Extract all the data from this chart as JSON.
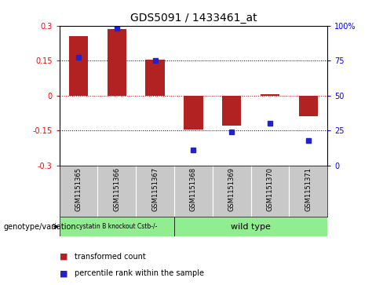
{
  "title": "GDS5091 / 1433461_at",
  "samples": [
    "GSM1151365",
    "GSM1151366",
    "GSM1151367",
    "GSM1151368",
    "GSM1151369",
    "GSM1151370",
    "GSM1151371"
  ],
  "bar_values": [
    0.255,
    0.285,
    0.155,
    -0.145,
    -0.13,
    0.005,
    -0.09
  ],
  "percentile_values": [
    0.165,
    0.29,
    0.15,
    -0.235,
    -0.155,
    -0.12,
    -0.195
  ],
  "ylim": [
    -0.3,
    0.3
  ],
  "yticks_left": [
    -0.3,
    -0.15,
    0,
    0.15,
    0.3
  ],
  "yticks_right": [
    0,
    25,
    50,
    75,
    100
  ],
  "bar_color": "#b22222",
  "dot_color": "#2222cc",
  "zero_line_color": "#cc0000",
  "dotted_line_color": "#000000",
  "group1_label": "cystatin B knockout Cstb-/-",
  "group2_label": "wild type",
  "group1_color": "#90ee90",
  "group2_color": "#90ee90",
  "group1_count": 3,
  "group2_count": 4,
  "legend_bar_label": "transformed count",
  "legend_dot_label": "percentile rank within the sample",
  "genotype_label": "genotype/variation",
  "bg_color": "#ffffff",
  "plot_bg_color": "#ffffff",
  "sample_bg_color": "#c8c8c8",
  "tick_fontsize": 7,
  "title_fontsize": 10
}
